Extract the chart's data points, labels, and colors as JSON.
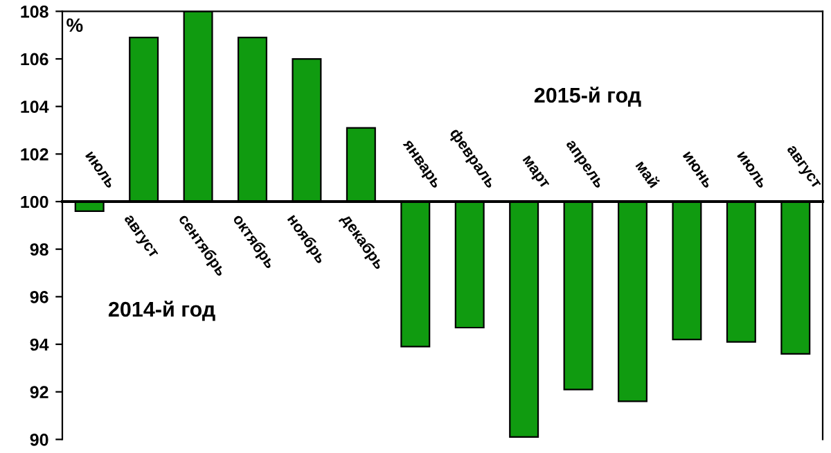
{
  "chart_data": {
    "type": "bar",
    "ylabel": "%",
    "categories": [
      "июль",
      "август",
      "сентябрь",
      "октябрь",
      "ноябрь",
      "декабрь",
      "январь",
      "февраль",
      "март",
      "апрель",
      "май",
      "июнь",
      "июль",
      "август"
    ],
    "base": [
      100,
      100,
      100,
      100,
      100,
      100,
      100,
      100,
      100,
      100,
      100,
      100,
      100,
      100
    ],
    "values": [
      -0.4,
      6.9,
      8,
      6.9,
      6,
      3.1,
      -6.1,
      -5.3,
      -9.9,
      -7.9,
      -8.4,
      -5.8,
      -5.9,
      -6.4
    ],
    "color": "#109b10",
    "ylim": [
      90,
      108
    ],
    "yticks": [
      90,
      92,
      94,
      96,
      98,
      100,
      102,
      104,
      106,
      108
    ],
    "annotations": [
      "2015-й год",
      "2014-й год"
    ],
    "grid": false,
    "legend": false
  }
}
